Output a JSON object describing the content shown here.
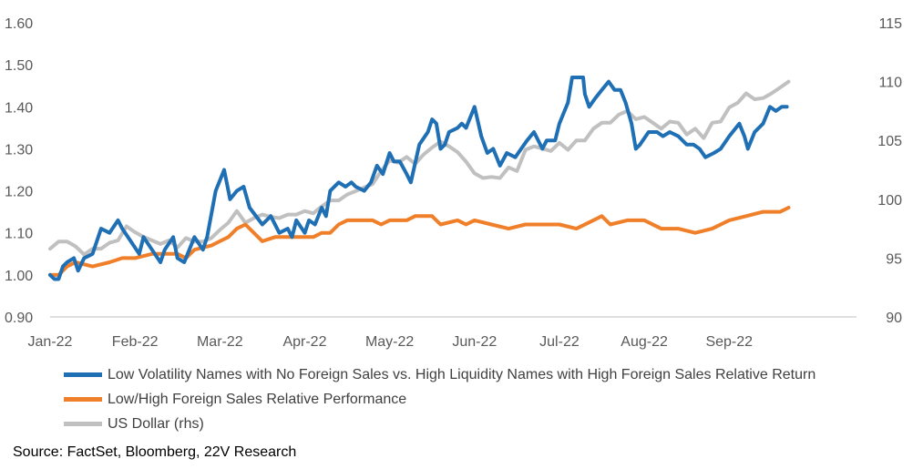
{
  "chart_data": {
    "type": "line",
    "title": "",
    "xlabel": "",
    "ylabel": "",
    "ylim": [
      0.9,
      1.6
    ],
    "y2lim": [
      90,
      115
    ],
    "yticks": [
      "0.90",
      "1.00",
      "1.10",
      "1.20",
      "1.30",
      "1.40",
      "1.50",
      "1.60"
    ],
    "y2ticks": [
      "90",
      "95",
      "100",
      "105",
      "110",
      "115"
    ],
    "xticks": [
      "Jan-22",
      "Feb-22",
      "Mar-22",
      "Apr-22",
      "May-22",
      "Jun-22",
      "Jul-22",
      "Aug-22",
      "Sep-22"
    ],
    "xlim": [
      0,
      9.5
    ],
    "grid": false,
    "legend_position": "bottom",
    "series": [
      {
        "name": "Low Volatility Names with No Foreign Sales vs. High Liquidity Names with High Foreign Sales Relative Return",
        "axis": "left",
        "color": "#1f6fb5",
        "points": [
          [
            0.0,
            1.0
          ],
          [
            0.05,
            0.99
          ],
          [
            0.1,
            0.99
          ],
          [
            0.15,
            1.02
          ],
          [
            0.2,
            1.03
          ],
          [
            0.28,
            1.04
          ],
          [
            0.33,
            1.01
          ],
          [
            0.4,
            1.04
          ],
          [
            0.5,
            1.05
          ],
          [
            0.6,
            1.11
          ],
          [
            0.7,
            1.1
          ],
          [
            0.8,
            1.13
          ],
          [
            0.85,
            1.11
          ],
          [
            0.95,
            1.08
          ],
          [
            1.05,
            1.05
          ],
          [
            1.1,
            1.09
          ],
          [
            1.2,
            1.06
          ],
          [
            1.3,
            1.03
          ],
          [
            1.35,
            1.06
          ],
          [
            1.45,
            1.09
          ],
          [
            1.5,
            1.04
          ],
          [
            1.58,
            1.03
          ],
          [
            1.7,
            1.09
          ],
          [
            1.8,
            1.06
          ],
          [
            1.85,
            1.09
          ],
          [
            1.95,
            1.2
          ],
          [
            2.05,
            1.25
          ],
          [
            2.12,
            1.18
          ],
          [
            2.2,
            1.2
          ],
          [
            2.28,
            1.21
          ],
          [
            2.35,
            1.16
          ],
          [
            2.5,
            1.12
          ],
          [
            2.6,
            1.14
          ],
          [
            2.7,
            1.1
          ],
          [
            2.8,
            1.11
          ],
          [
            2.85,
            1.09
          ],
          [
            2.9,
            1.13
          ],
          [
            3.0,
            1.1
          ],
          [
            3.05,
            1.13
          ],
          [
            3.12,
            1.12
          ],
          [
            3.2,
            1.16
          ],
          [
            3.25,
            1.14
          ],
          [
            3.3,
            1.2
          ],
          [
            3.4,
            1.22
          ],
          [
            3.48,
            1.21
          ],
          [
            3.55,
            1.22
          ],
          [
            3.6,
            1.21
          ],
          [
            3.7,
            1.2
          ],
          [
            3.78,
            1.22
          ],
          [
            3.85,
            1.26
          ],
          [
            3.92,
            1.24
          ],
          [
            4.0,
            1.29
          ],
          [
            4.05,
            1.27
          ],
          [
            4.12,
            1.27
          ],
          [
            4.2,
            1.24
          ],
          [
            4.25,
            1.22
          ],
          [
            4.35,
            1.31
          ],
          [
            4.45,
            1.34
          ],
          [
            4.5,
            1.37
          ],
          [
            4.55,
            1.36
          ],
          [
            4.6,
            1.3
          ],
          [
            4.65,
            1.31
          ],
          [
            4.7,
            1.34
          ],
          [
            4.8,
            1.35
          ],
          [
            4.85,
            1.36
          ],
          [
            4.9,
            1.35
          ],
          [
            5.0,
            1.4
          ],
          [
            5.08,
            1.33
          ],
          [
            5.15,
            1.29
          ],
          [
            5.22,
            1.3
          ],
          [
            5.3,
            1.26
          ],
          [
            5.38,
            1.29
          ],
          [
            5.48,
            1.28
          ],
          [
            5.55,
            1.3
          ],
          [
            5.62,
            1.32
          ],
          [
            5.7,
            1.34
          ],
          [
            5.8,
            1.3
          ],
          [
            5.85,
            1.32
          ],
          [
            5.95,
            1.32
          ],
          [
            6.0,
            1.36
          ],
          [
            6.1,
            1.41
          ],
          [
            6.15,
            1.47
          ],
          [
            6.28,
            1.47
          ],
          [
            6.3,
            1.43
          ],
          [
            6.35,
            1.4
          ],
          [
            6.42,
            1.42
          ],
          [
            6.5,
            1.44
          ],
          [
            6.58,
            1.46
          ],
          [
            6.65,
            1.44
          ],
          [
            6.72,
            1.44
          ],
          [
            6.78,
            1.41
          ],
          [
            6.85,
            1.36
          ],
          [
            6.9,
            1.3
          ],
          [
            6.95,
            1.31
          ],
          [
            7.05,
            1.34
          ],
          [
            7.15,
            1.34
          ],
          [
            7.22,
            1.33
          ],
          [
            7.3,
            1.34
          ],
          [
            7.4,
            1.33
          ],
          [
            7.5,
            1.31
          ],
          [
            7.58,
            1.31
          ],
          [
            7.65,
            1.3
          ],
          [
            7.72,
            1.28
          ],
          [
            7.82,
            1.29
          ],
          [
            7.9,
            1.3
          ],
          [
            8.0,
            1.33
          ],
          [
            8.08,
            1.35
          ],
          [
            8.12,
            1.36
          ],
          [
            8.18,
            1.33
          ],
          [
            8.22,
            1.3
          ],
          [
            8.3,
            1.34
          ],
          [
            8.4,
            1.36
          ],
          [
            8.48,
            1.4
          ],
          [
            8.55,
            1.39
          ],
          [
            8.62,
            1.4
          ],
          [
            8.68,
            1.4
          ]
        ]
      },
      {
        "name": "Low/High Foreign Sales Relative Performance",
        "axis": "left",
        "color": "#f07f2a",
        "points": [
          [
            0.0,
            1.0
          ],
          [
            0.1,
            1.0
          ],
          [
            0.2,
            1.02
          ],
          [
            0.3,
            1.03
          ],
          [
            0.5,
            1.02
          ],
          [
            0.7,
            1.03
          ],
          [
            0.85,
            1.04
          ],
          [
            1.0,
            1.04
          ],
          [
            1.2,
            1.05
          ],
          [
            1.4,
            1.05
          ],
          [
            1.5,
            1.05
          ],
          [
            1.6,
            1.04
          ],
          [
            1.7,
            1.06
          ],
          [
            1.9,
            1.07
          ],
          [
            2.0,
            1.08
          ],
          [
            2.1,
            1.09
          ],
          [
            2.2,
            1.11
          ],
          [
            2.3,
            1.12
          ],
          [
            2.4,
            1.1
          ],
          [
            2.5,
            1.08
          ],
          [
            2.65,
            1.09
          ],
          [
            2.8,
            1.09
          ],
          [
            2.95,
            1.09
          ],
          [
            3.1,
            1.09
          ],
          [
            3.2,
            1.1
          ],
          [
            3.3,
            1.1
          ],
          [
            3.4,
            1.12
          ],
          [
            3.5,
            1.13
          ],
          [
            3.7,
            1.13
          ],
          [
            3.8,
            1.13
          ],
          [
            3.9,
            1.12
          ],
          [
            4.0,
            1.13
          ],
          [
            4.2,
            1.13
          ],
          [
            4.3,
            1.14
          ],
          [
            4.5,
            1.14
          ],
          [
            4.6,
            1.12
          ],
          [
            4.8,
            1.13
          ],
          [
            4.9,
            1.12
          ],
          [
            5.0,
            1.13
          ],
          [
            5.2,
            1.12
          ],
          [
            5.4,
            1.11
          ],
          [
            5.6,
            1.12
          ],
          [
            5.8,
            1.12
          ],
          [
            6.0,
            1.12
          ],
          [
            6.2,
            1.11
          ],
          [
            6.4,
            1.13
          ],
          [
            6.5,
            1.14
          ],
          [
            6.6,
            1.12
          ],
          [
            6.8,
            1.13
          ],
          [
            7.0,
            1.13
          ],
          [
            7.2,
            1.11
          ],
          [
            7.4,
            1.11
          ],
          [
            7.6,
            1.1
          ],
          [
            7.8,
            1.11
          ],
          [
            8.0,
            1.13
          ],
          [
            8.2,
            1.14
          ],
          [
            8.4,
            1.15
          ],
          [
            8.6,
            1.15
          ],
          [
            8.7,
            1.16
          ]
        ]
      },
      {
        "name": "US Dollar (rhs)",
        "axis": "right",
        "color": "#c0c0c0",
        "points": [
          [
            0.0,
            95.8
          ],
          [
            0.1,
            96.4
          ],
          [
            0.2,
            96.4
          ],
          [
            0.3,
            96.0
          ],
          [
            0.4,
            95.3
          ],
          [
            0.5,
            95.8
          ],
          [
            0.6,
            95.8
          ],
          [
            0.7,
            96.3
          ],
          [
            0.8,
            96.5
          ],
          [
            0.9,
            97.7
          ],
          [
            1.0,
            97.2
          ],
          [
            1.1,
            96.8
          ],
          [
            1.2,
            96.5
          ],
          [
            1.3,
            96.2
          ],
          [
            1.4,
            96.5
          ],
          [
            1.5,
            95.9
          ],
          [
            1.6,
            96.7
          ],
          [
            1.7,
            96.4
          ],
          [
            1.8,
            96.4
          ],
          [
            1.9,
            96.7
          ],
          [
            2.0,
            97.4
          ],
          [
            2.1,
            98.0
          ],
          [
            2.2,
            99.0
          ],
          [
            2.3,
            98.0
          ],
          [
            2.4,
            98.4
          ],
          [
            2.5,
            98.7
          ],
          [
            2.6,
            98.5
          ],
          [
            2.7,
            98.4
          ],
          [
            2.8,
            98.7
          ],
          [
            2.9,
            98.7
          ],
          [
            3.0,
            99.0
          ],
          [
            3.1,
            98.8
          ],
          [
            3.2,
            99.4
          ],
          [
            3.3,
            99.9
          ],
          [
            3.4,
            99.9
          ],
          [
            3.5,
            100.4
          ],
          [
            3.6,
            100.7
          ],
          [
            3.7,
            101.0
          ],
          [
            3.8,
            101.3
          ],
          [
            3.9,
            102.4
          ],
          [
            4.0,
            103.3
          ],
          [
            4.1,
            103.1
          ],
          [
            4.2,
            103.6
          ],
          [
            4.3,
            103.0
          ],
          [
            4.4,
            103.8
          ],
          [
            4.5,
            104.4
          ],
          [
            4.6,
            104.9
          ],
          [
            4.7,
            104.5
          ],
          [
            4.8,
            104.0
          ],
          [
            4.9,
            103.2
          ],
          [
            5.0,
            102.2
          ],
          [
            5.1,
            101.8
          ],
          [
            5.2,
            101.9
          ],
          [
            5.3,
            101.8
          ],
          [
            5.4,
            102.7
          ],
          [
            5.5,
            102.4
          ],
          [
            5.6,
            104.2
          ],
          [
            5.7,
            104.5
          ],
          [
            5.8,
            104.3
          ],
          [
            5.9,
            104.1
          ],
          [
            6.0,
            104.8
          ],
          [
            6.1,
            104.2
          ],
          [
            6.2,
            105.0
          ],
          [
            6.3,
            105.0
          ],
          [
            6.4,
            106.0
          ],
          [
            6.5,
            106.5
          ],
          [
            6.6,
            106.5
          ],
          [
            6.7,
            107.2
          ],
          [
            6.8,
            107.5
          ],
          [
            6.9,
            106.8
          ],
          [
            7.0,
            107.0
          ],
          [
            7.1,
            106.5
          ],
          [
            7.2,
            106.0
          ],
          [
            7.3,
            106.6
          ],
          [
            7.4,
            106.5
          ],
          [
            7.5,
            105.5
          ],
          [
            7.6,
            106.0
          ],
          [
            7.7,
            105.2
          ],
          [
            7.8,
            106.5
          ],
          [
            7.9,
            106.6
          ],
          [
            8.0,
            107.8
          ],
          [
            8.1,
            108.2
          ],
          [
            8.2,
            109.0
          ],
          [
            8.3,
            108.5
          ],
          [
            8.4,
            108.6
          ],
          [
            8.5,
            109.0
          ],
          [
            8.6,
            109.5
          ],
          [
            8.7,
            110.0
          ]
        ]
      }
    ]
  },
  "legend": [
    {
      "label": "Low Volatility Names with No Foreign Sales vs. High Liquidity Names with High Foreign Sales Relative Return",
      "color": "#1f6fb5"
    },
    {
      "label": "Low/High Foreign Sales Relative Performance",
      "color": "#f07f2a"
    },
    {
      "label": "US Dollar (rhs)",
      "color": "#c0c0c0"
    }
  ],
  "source": "Source: FactSet, Bloomberg, 22V Research"
}
